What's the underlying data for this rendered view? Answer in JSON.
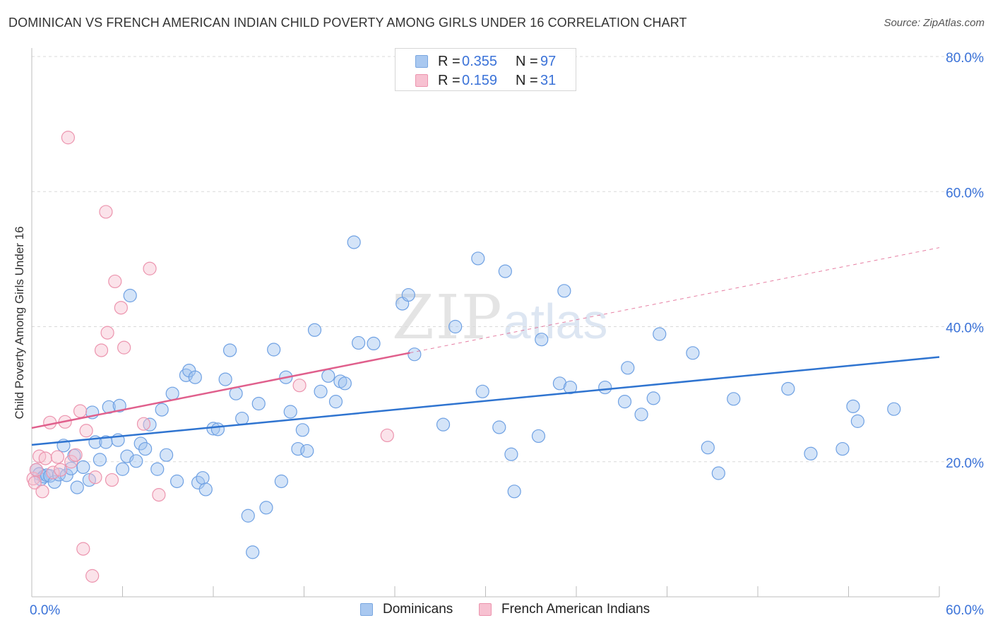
{
  "title": "DOMINICAN VS FRENCH AMERICAN INDIAN CHILD POVERTY AMONG GIRLS UNDER 16 CORRELATION CHART",
  "source": "Source: ZipAtlas.com",
  "watermark": {
    "main": "ZIP",
    "sub": "atlas"
  },
  "legend_top": [
    {
      "r_label": "R =",
      "r_value": "0.355",
      "n_label": "N =",
      "n_value": "97",
      "color": "#a9c8f0",
      "border": "#7aa7e0"
    },
    {
      "r_label": "R =",
      "r_value": "0.159",
      "n_label": "N =",
      "n_value": "31",
      "color": "#f7c1d1",
      "border": "#ec94ae"
    }
  ],
  "legend_bottom": [
    {
      "label": "Dominicans",
      "color": "#a9c8f0",
      "border": "#7aa7e0"
    },
    {
      "label": "French American Indians",
      "color": "#f7c1d1",
      "border": "#ec94ae"
    }
  ],
  "chart_data": {
    "type": "scatter",
    "title": "DOMINICAN VS FRENCH AMERICAN INDIAN CHILD POVERTY AMONG GIRLS UNDER 16 CORRELATION CHART",
    "xlabel": "",
    "ylabel": "Child Poverty Among Girls Under 16",
    "xlim": [
      0,
      60
    ],
    "ylim": [
      0,
      80
    ],
    "x_tick_labels": [
      "0.0%",
      "60.0%"
    ],
    "y_ticks": [
      20,
      40,
      60,
      80
    ],
    "y_tick_labels": [
      "20.0%",
      "40.0%",
      "60.0%",
      "80.0%"
    ],
    "grid": true,
    "legend": "top-center",
    "series": [
      {
        "name": "Dominicans",
        "color": "#6fa1e3",
        "fill": "rgba(160,196,240,0.45)",
        "line_color": "#2f74d0",
        "trend": {
          "x": [
            0,
            60
          ],
          "y": [
            22.5,
            35.5
          ]
        },
        "points": [
          [
            0.3,
            18.8
          ],
          [
            0.5,
            18.2
          ],
          [
            0.6,
            17.4
          ],
          [
            0.8,
            17.8
          ],
          [
            1.0,
            18.0
          ],
          [
            1.2,
            17.9
          ],
          [
            1.5,
            17.0
          ],
          [
            1.8,
            18.1
          ],
          [
            2.1,
            22.4
          ],
          [
            2.3,
            18.0
          ],
          [
            2.6,
            19.0
          ],
          [
            2.8,
            20.9
          ],
          [
            3.0,
            16.2
          ],
          [
            3.4,
            19.2
          ],
          [
            3.8,
            17.3
          ],
          [
            4.0,
            27.3
          ],
          [
            4.2,
            22.9
          ],
          [
            4.5,
            20.3
          ],
          [
            4.9,
            22.9
          ],
          [
            5.1,
            28.1
          ],
          [
            5.7,
            23.2
          ],
          [
            5.8,
            28.3
          ],
          [
            6.0,
            18.9
          ],
          [
            6.3,
            20.8
          ],
          [
            6.5,
            44.6
          ],
          [
            6.9,
            20.1
          ],
          [
            7.2,
            22.7
          ],
          [
            7.5,
            21.9
          ],
          [
            7.8,
            25.5
          ],
          [
            8.3,
            18.9
          ],
          [
            8.6,
            27.7
          ],
          [
            8.9,
            21.0
          ],
          [
            9.3,
            30.1
          ],
          [
            9.6,
            17.1
          ],
          [
            10.2,
            32.8
          ],
          [
            10.4,
            33.5
          ],
          [
            10.8,
            32.5
          ],
          [
            11.0,
            16.9
          ],
          [
            11.3,
            17.6
          ],
          [
            11.5,
            15.9
          ],
          [
            12.0,
            24.9
          ],
          [
            12.3,
            24.8
          ],
          [
            12.8,
            32.2
          ],
          [
            13.1,
            36.5
          ],
          [
            13.5,
            30.1
          ],
          [
            13.9,
            26.4
          ],
          [
            14.3,
            12.0
          ],
          [
            14.6,
            6.6
          ],
          [
            15.0,
            28.6
          ],
          [
            15.5,
            13.2
          ],
          [
            16.0,
            36.6
          ],
          [
            16.5,
            17.1
          ],
          [
            16.8,
            32.5
          ],
          [
            17.1,
            27.4
          ],
          [
            17.6,
            21.9
          ],
          [
            17.9,
            24.7
          ],
          [
            18.2,
            21.6
          ],
          [
            18.7,
            39.5
          ],
          [
            19.1,
            30.4
          ],
          [
            19.6,
            32.7
          ],
          [
            20.1,
            28.9
          ],
          [
            20.4,
            31.9
          ],
          [
            20.7,
            31.6
          ],
          [
            21.3,
            52.5
          ],
          [
            21.6,
            37.6
          ],
          [
            22.6,
            37.5
          ],
          [
            24.5,
            43.4
          ],
          [
            24.9,
            44.7
          ],
          [
            25.3,
            35.9
          ],
          [
            27.2,
            25.5
          ],
          [
            28.0,
            40.0
          ],
          [
            29.5,
            50.1
          ],
          [
            29.8,
            30.4
          ],
          [
            30.9,
            25.1
          ],
          [
            31.3,
            48.2
          ],
          [
            31.7,
            21.1
          ],
          [
            31.9,
            15.6
          ],
          [
            33.5,
            23.8
          ],
          [
            33.7,
            38.1
          ],
          [
            34.9,
            31.6
          ],
          [
            35.2,
            45.3
          ],
          [
            35.6,
            31.0
          ],
          [
            37.9,
            31.0
          ],
          [
            39.2,
            28.9
          ],
          [
            39.4,
            33.9
          ],
          [
            40.3,
            27.0
          ],
          [
            41.1,
            29.4
          ],
          [
            41.5,
            38.9
          ],
          [
            43.7,
            36.1
          ],
          [
            44.7,
            22.1
          ],
          [
            45.4,
            18.3
          ],
          [
            46.4,
            29.3
          ],
          [
            50.0,
            30.8
          ],
          [
            51.5,
            21.2
          ],
          [
            53.6,
            21.9
          ],
          [
            54.3,
            28.2
          ],
          [
            54.6,
            26.0
          ],
          [
            57.0,
            27.8
          ]
        ]
      },
      {
        "name": "French American Indians",
        "color": "#ec94ae",
        "fill": "rgba(247,193,209,0.45)",
        "line_color": "#e05f8c",
        "trend": {
          "x": [
            0,
            60
          ],
          "y": [
            25.0,
            51.7
          ]
        },
        "trend_solid_until": 25,
        "points": [
          [
            0.1,
            17.5
          ],
          [
            0.2,
            16.9
          ],
          [
            0.3,
            18.8
          ],
          [
            0.5,
            20.8
          ],
          [
            0.7,
            15.6
          ],
          [
            0.9,
            20.5
          ],
          [
            1.2,
            25.8
          ],
          [
            1.4,
            18.4
          ],
          [
            1.7,
            20.7
          ],
          [
            1.9,
            18.8
          ],
          [
            2.2,
            25.9
          ],
          [
            2.4,
            68.0
          ],
          [
            2.6,
            20.0
          ],
          [
            2.9,
            21.0
          ],
          [
            3.2,
            27.5
          ],
          [
            3.4,
            7.1
          ],
          [
            3.6,
            24.6
          ],
          [
            4.0,
            3.1
          ],
          [
            4.2,
            17.7
          ],
          [
            4.6,
            36.5
          ],
          [
            4.9,
            57.0
          ],
          [
            5.0,
            39.1
          ],
          [
            5.3,
            17.3
          ],
          [
            5.5,
            46.7
          ],
          [
            5.9,
            42.8
          ],
          [
            6.1,
            36.9
          ],
          [
            7.4,
            25.6
          ],
          [
            7.8,
            48.6
          ],
          [
            8.4,
            15.1
          ],
          [
            17.7,
            31.3
          ],
          [
            23.5,
            23.9
          ]
        ]
      }
    ]
  }
}
